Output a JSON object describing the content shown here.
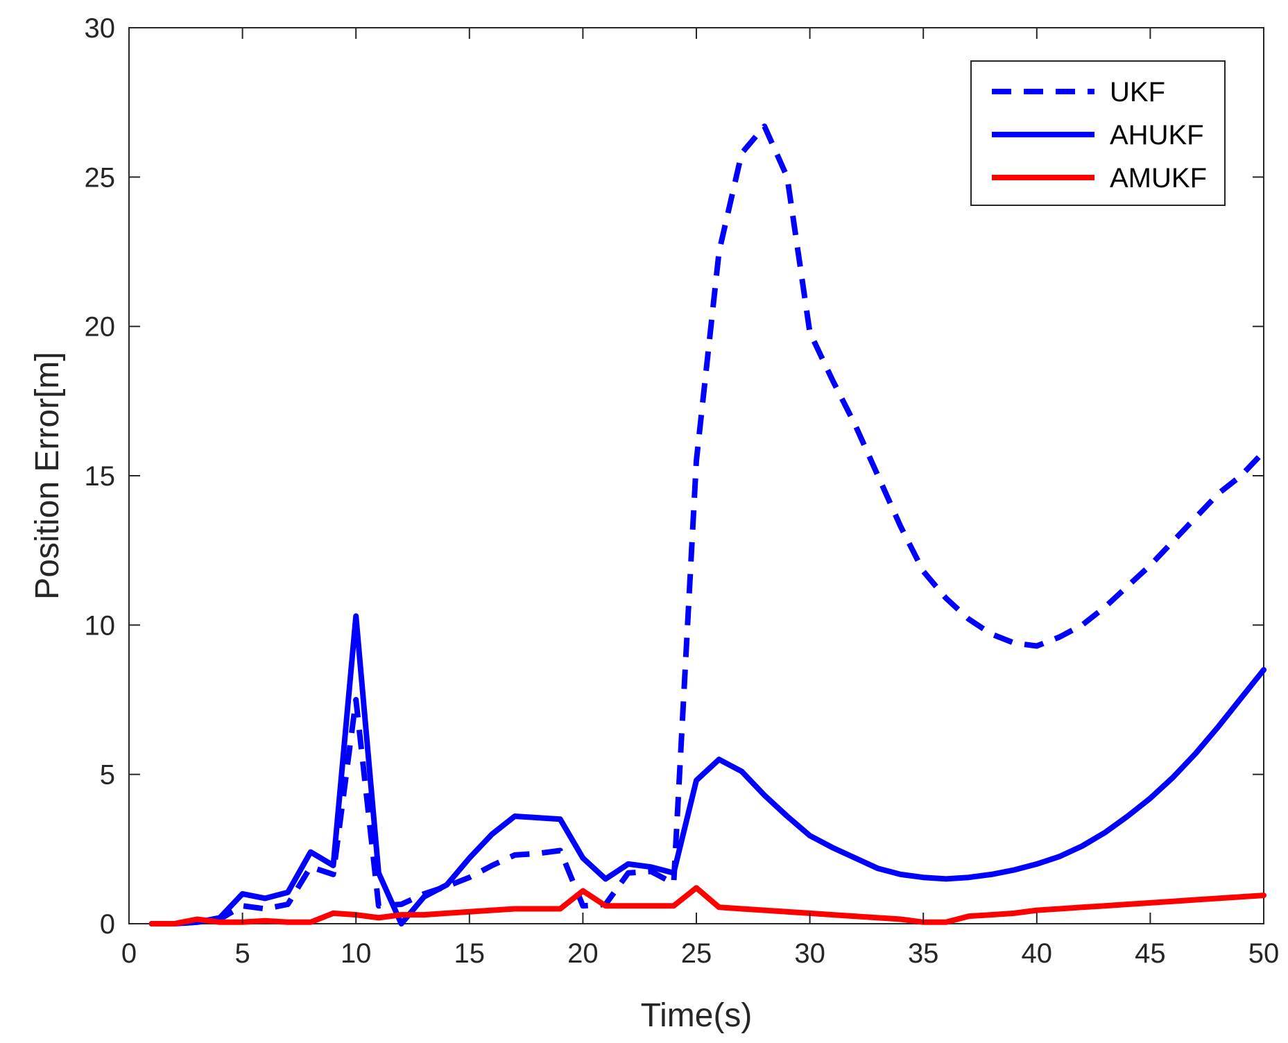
{
  "chart_data": {
    "type": "line",
    "title": "",
    "xlabel": "Time(s)",
    "ylabel": "Position Error[m]",
    "xlim": [
      0,
      50
    ],
    "ylim": [
      0,
      30
    ],
    "xticks": [
      0,
      5,
      10,
      15,
      20,
      25,
      30,
      35,
      40,
      45,
      50
    ],
    "yticks": [
      0,
      5,
      10,
      15,
      20,
      25,
      30
    ],
    "grid": false,
    "legend_position": "top-right",
    "x": [
      1,
      2,
      3,
      4,
      5,
      6,
      7,
      8,
      9,
      10,
      11,
      12,
      13,
      14,
      15,
      16,
      17,
      18,
      19,
      20,
      21,
      22,
      23,
      24,
      25,
      26,
      27,
      28,
      29,
      30,
      31,
      32,
      33,
      34,
      35,
      36,
      37,
      38,
      39,
      40,
      41,
      42,
      43,
      44,
      45,
      46,
      47,
      48,
      49,
      50
    ],
    "series": [
      {
        "name": "UKF",
        "color": "#0000ff",
        "style": "dashed",
        "values": [
          0.0,
          0.0,
          0.05,
          0.15,
          0.6,
          0.5,
          0.65,
          1.9,
          1.65,
          7.5,
          0.6,
          0.65,
          1.0,
          1.25,
          1.55,
          1.95,
          2.3,
          2.35,
          2.45,
          0.6,
          0.65,
          1.7,
          1.75,
          1.35,
          15.5,
          22.5,
          25.8,
          26.7,
          25.0,
          19.8,
          18.2,
          16.7,
          15.0,
          13.3,
          11.8,
          10.9,
          10.2,
          9.7,
          9.4,
          9.3,
          9.6,
          10.0,
          10.6,
          11.3,
          12.0,
          12.8,
          13.6,
          14.4,
          15.0,
          15.8
        ]
      },
      {
        "name": "AHUKF",
        "color": "#0000ff",
        "style": "solid",
        "values": [
          0.0,
          0.0,
          0.05,
          0.2,
          1.0,
          0.85,
          1.05,
          2.4,
          1.95,
          10.3,
          1.7,
          0.0,
          0.9,
          1.3,
          2.2,
          3.0,
          3.6,
          3.55,
          3.5,
          2.2,
          1.5,
          2.0,
          1.9,
          1.7,
          4.8,
          5.5,
          5.1,
          4.3,
          3.6,
          2.95,
          2.55,
          2.2,
          1.85,
          1.65,
          1.55,
          1.5,
          1.55,
          1.65,
          1.8,
          2.0,
          2.25,
          2.6,
          3.05,
          3.6,
          4.2,
          4.9,
          5.7,
          6.6,
          7.55,
          8.5
        ]
      },
      {
        "name": "AMUKF",
        "color": "#ff0000",
        "style": "solid",
        "values": [
          0.0,
          0.0,
          0.15,
          0.05,
          0.05,
          0.1,
          0.05,
          0.05,
          0.35,
          0.3,
          0.2,
          0.3,
          0.3,
          0.35,
          0.4,
          0.45,
          0.5,
          0.5,
          0.5,
          1.1,
          0.6,
          0.6,
          0.6,
          0.6,
          1.2,
          0.55,
          0.5,
          0.45,
          0.4,
          0.35,
          0.3,
          0.25,
          0.2,
          0.15,
          0.05,
          0.05,
          0.25,
          0.3,
          0.35,
          0.45,
          0.5,
          0.55,
          0.6,
          0.65,
          0.7,
          0.75,
          0.8,
          0.85,
          0.9,
          0.95
        ]
      }
    ]
  }
}
